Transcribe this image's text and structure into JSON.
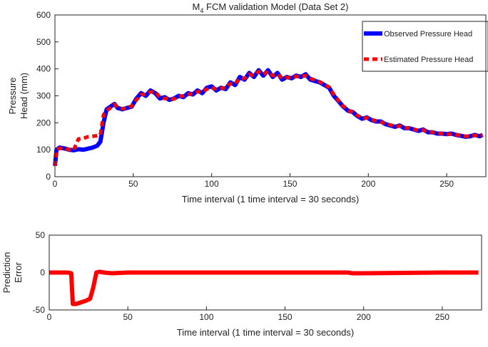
{
  "chart_data": [
    {
      "type": "line",
      "title": [
        "M",
        "4",
        " FCM validation Model (Data Set 2)"
      ],
      "xlabel": "Time interval (1 time interval = 30 seconds)",
      "ylabel": [
        "Pressure",
        "Head (mm)"
      ],
      "xlim": [
        0,
        275
      ],
      "ylim": [
        0,
        600
      ],
      "xticks": [
        0,
        50,
        100,
        150,
        200,
        250
      ],
      "yticks": [
        0,
        100,
        200,
        300,
        400,
        500,
        600
      ],
      "legend": "upper right",
      "x": [
        0,
        1,
        3,
        6,
        9,
        12,
        15,
        18,
        21,
        24,
        27,
        29,
        31,
        33,
        36,
        38,
        40,
        43,
        46,
        49,
        52,
        55,
        58,
        61,
        64,
        67,
        70,
        73,
        76,
        79,
        82,
        85,
        88,
        91,
        94,
        97,
        100,
        103,
        106,
        109,
        112,
        115,
        118,
        121,
        124,
        127,
        130,
        133,
        136,
        139,
        142,
        145,
        148,
        151,
        154,
        157,
        160,
        163,
        166,
        169,
        172,
        175,
        178,
        181,
        184,
        187,
        190,
        193,
        196,
        199,
        202,
        205,
        208,
        211,
        214,
        217,
        220,
        223,
        226,
        229,
        232,
        235,
        238,
        241,
        244,
        247,
        250,
        253,
        256,
        259,
        262,
        265,
        268,
        271,
        273
      ],
      "series": [
        {
          "name": "Observed Pressure Head",
          "color": "#0000ff",
          "linestyle": "solid",
          "values": [
            40,
            100,
            108,
            105,
            100,
            98,
            102,
            100,
            104,
            108,
            115,
            130,
            200,
            250,
            262,
            270,
            255,
            250,
            255,
            260,
            290,
            310,
            300,
            320,
            310,
            290,
            295,
            285,
            290,
            300,
            295,
            310,
            305,
            320,
            310,
            330,
            335,
            320,
            330,
            325,
            350,
            340,
            370,
            360,
            385,
            370,
            395,
            375,
            395,
            370,
            385,
            360,
            370,
            365,
            375,
            370,
            380,
            360,
            355,
            350,
            340,
            330,
            300,
            280,
            260,
            245,
            240,
            225,
            215,
            220,
            210,
            205,
            205,
            195,
            190,
            185,
            190,
            180,
            180,
            175,
            170,
            175,
            165,
            165,
            160,
            160,
            158,
            160,
            155,
            152,
            148,
            150,
            155,
            150,
            155
          ]
        },
        {
          "name": "Estimated Pressure Head",
          "color": "#ff0000",
          "linestyle": "dashed",
          "values": [
            40,
            100,
            105,
            105,
            100,
            100,
            140,
            142,
            148,
            150,
            152,
            155,
            230,
            245,
            258,
            268,
            258,
            252,
            255,
            262,
            285,
            305,
            305,
            315,
            315,
            295,
            290,
            290,
            288,
            298,
            300,
            305,
            308,
            315,
            315,
            325,
            330,
            325,
            328,
            330,
            345,
            345,
            365,
            365,
            380,
            375,
            390,
            380,
            390,
            375,
            380,
            365,
            368,
            368,
            372,
            372,
            375,
            365,
            358,
            352,
            342,
            332,
            305,
            282,
            262,
            248,
            238,
            228,
            218,
            218,
            212,
            207,
            203,
            197,
            192,
            187,
            188,
            182,
            180,
            176,
            172,
            173,
            167,
            165,
            162,
            160,
            158,
            158,
            156,
            153,
            150,
            150,
            153,
            152,
            154
          ]
        }
      ]
    },
    {
      "type": "line",
      "xlabel": "Time interval (1 time interval = 30 seconds)",
      "ylabel": [
        "Prediction",
        "Error"
      ],
      "xlim": [
        0,
        275
      ],
      "ylim": [
        -50,
        50
      ],
      "xticks": [
        0,
        50,
        100,
        150,
        200,
        250
      ],
      "yticks": [
        -50,
        0,
        50
      ],
      "x": [
        0,
        3,
        6,
        9,
        12,
        14,
        15,
        17,
        20,
        23,
        26,
        28,
        30,
        32,
        35,
        40,
        50,
        100,
        150,
        190,
        193,
        200,
        250,
        273
      ],
      "series": [
        {
          "color": "#ff0000",
          "linestyle": "solid",
          "values": [
            0,
            0,
            0,
            0,
            0,
            -1,
            -42,
            -42,
            -40,
            -38,
            -35,
            -20,
            0,
            1,
            0,
            -1,
            0,
            0,
            0,
            0,
            -1,
            -1,
            0,
            0
          ]
        }
      ]
    }
  ]
}
